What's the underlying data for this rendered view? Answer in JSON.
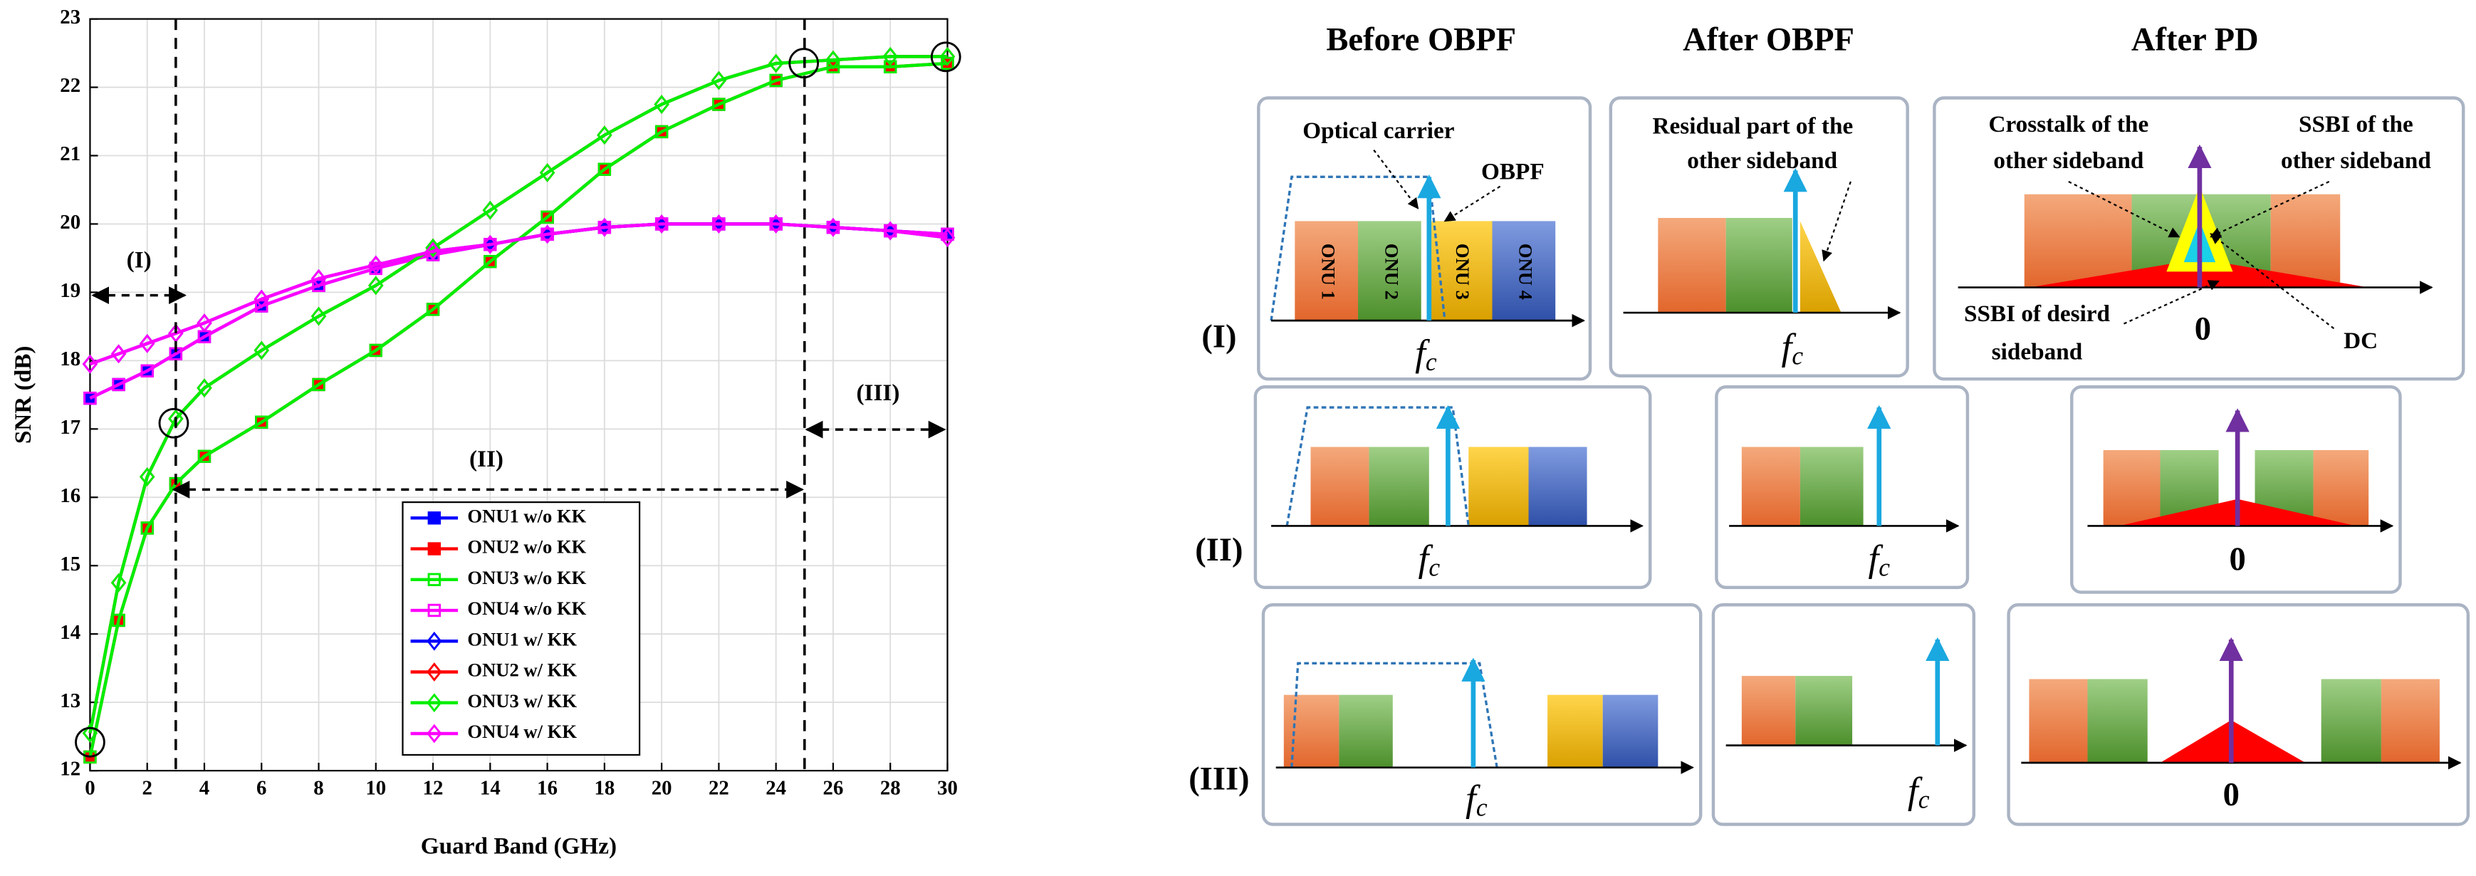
{
  "chart_data": {
    "type": "line",
    "x_label": "Guard Band (GHz)",
    "y_label": "SNR (dB)",
    "x": [
      0,
      1,
      2,
      3,
      4,
      6,
      8,
      10,
      12,
      14,
      16,
      18,
      20,
      22,
      24,
      26,
      28,
      30
    ],
    "xlim": [
      0,
      30
    ],
    "xticks": [
      0,
      2,
      4,
      6,
      8,
      10,
      12,
      14,
      16,
      18,
      20,
      22,
      24,
      26,
      28,
      30
    ],
    "ylim": [
      12,
      23
    ],
    "yticks": [
      12,
      13,
      14,
      15,
      16,
      17,
      18,
      19,
      20,
      21,
      22,
      23
    ],
    "grid": true,
    "vlines": [
      3,
      25
    ],
    "annotations": [
      "(I)",
      "(II)",
      "(III)"
    ],
    "series": [
      {
        "name": "ONU1 w/o KK",
        "color": "#0000ff",
        "marker": "square",
        "filled": true,
        "values": [
          17.45,
          17.65,
          17.85,
          18.1,
          18.35,
          18.8,
          19.1,
          19.35,
          19.55,
          19.7,
          19.85,
          19.95,
          20.0,
          20.0,
          20.0,
          19.95,
          19.9,
          19.85
        ]
      },
      {
        "name": "ONU2 w/o KK",
        "color": "#ff0000",
        "marker": "square",
        "filled": true,
        "values": [
          12.2,
          14.2,
          15.55,
          16.2,
          16.6,
          17.1,
          17.65,
          18.15,
          18.75,
          19.45,
          20.1,
          20.8,
          21.35,
          21.75,
          22.1,
          22.3,
          22.3,
          22.35
        ]
      },
      {
        "name": "ONU3 w/o KK",
        "color": "#00ee00",
        "marker": "square",
        "filled": false,
        "values": [
          12.2,
          14.2,
          15.55,
          16.2,
          16.6,
          17.1,
          17.65,
          18.15,
          18.75,
          19.45,
          20.1,
          20.8,
          21.35,
          21.75,
          22.1,
          22.3,
          22.3,
          22.35
        ]
      },
      {
        "name": "ONU4 w/o KK",
        "color": "#ff00ff",
        "marker": "square",
        "filled": false,
        "values": [
          17.45,
          17.65,
          17.85,
          18.1,
          18.35,
          18.8,
          19.1,
          19.35,
          19.55,
          19.7,
          19.85,
          19.95,
          20.0,
          20.0,
          20.0,
          19.95,
          19.9,
          19.85
        ]
      },
      {
        "name": "ONU1 w/ KK",
        "color": "#0000ff",
        "marker": "diamond",
        "filled": false,
        "values": [
          17.95,
          18.1,
          18.25,
          18.4,
          18.55,
          18.9,
          19.2,
          19.4,
          19.6,
          19.7,
          19.85,
          19.95,
          20.0,
          20.0,
          20.0,
          19.95,
          19.9,
          19.8
        ]
      },
      {
        "name": "ONU2 w/ KK",
        "color": "#ff0000",
        "marker": "diamond",
        "filled": false,
        "values": [
          12.55,
          14.75,
          16.3,
          17.15,
          17.6,
          18.15,
          18.65,
          19.1,
          19.65,
          20.2,
          20.75,
          21.3,
          21.75,
          22.1,
          22.35,
          22.4,
          22.45,
          22.45
        ]
      },
      {
        "name": "ONU3 w/ KK",
        "color": "#00ee00",
        "marker": "diamond",
        "filled": false,
        "values": [
          12.55,
          14.75,
          16.3,
          17.15,
          17.6,
          18.15,
          18.65,
          19.1,
          19.65,
          20.2,
          20.75,
          21.3,
          21.75,
          22.1,
          22.35,
          22.4,
          22.45,
          22.45
        ]
      },
      {
        "name": "ONU4 w/ KK",
        "color": "#ff00ff",
        "marker": "diamond",
        "filled": false,
        "values": [
          17.95,
          18.1,
          18.25,
          18.4,
          18.55,
          18.9,
          19.2,
          19.4,
          19.6,
          19.7,
          19.85,
          19.95,
          20.0,
          20.0,
          20.0,
          19.95,
          19.9,
          19.8
        ]
      }
    ]
  },
  "diagram": {
    "column_titles": [
      "Before OBPF",
      "After OBPF",
      "After PD"
    ],
    "row_labels": [
      "(I)",
      "(II)",
      "(III)"
    ],
    "fc": {
      "symbol": "f",
      "subscript": "c"
    },
    "zero": "0",
    "onu_labels": [
      "ONU 1",
      "ONU 2",
      "ONU 3",
      "ONU 4"
    ],
    "optical_carrier": "Optical carrier",
    "obpf": "OBPF",
    "residual": [
      "Residual part of the",
      "other sideband"
    ],
    "crosstalk": [
      "Crosstalk of the",
      "other sideband"
    ],
    "ssbi_other": [
      "SSBI of the",
      "other sideband"
    ],
    "ssbi_desired": [
      "SSBI of desird",
      "sideband"
    ],
    "dc": "DC"
  }
}
